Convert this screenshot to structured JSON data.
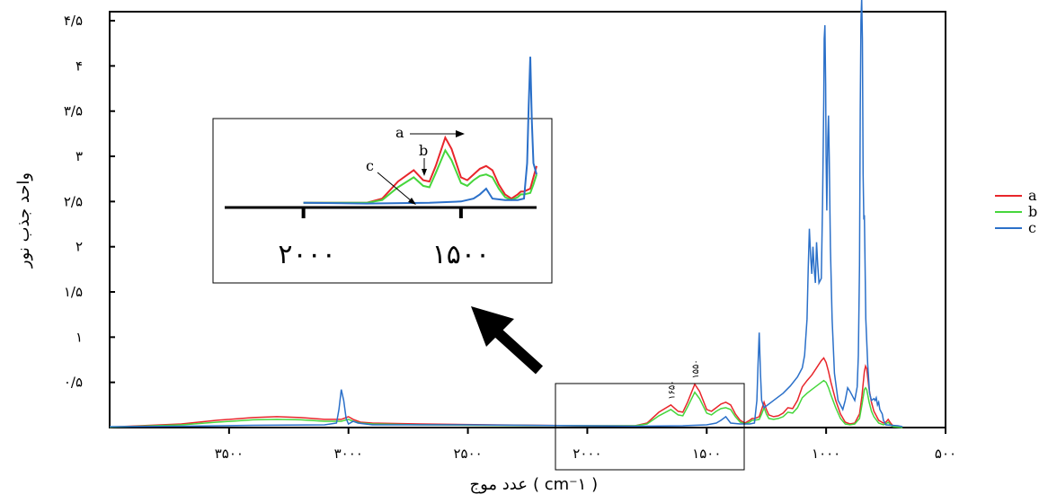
{
  "chart_data": {
    "type": "line",
    "xlabel": "عدد موج",
    "xunit": "( cm⁻۱ )",
    "ylabel": "واحد جذب نور",
    "xlim": [
      4000,
      500
    ],
    "ylim": [
      0,
      4.6
    ],
    "x_ticks": [
      {
        "value": 3500,
        "label": "۳۵۰۰"
      },
      {
        "value": 3000,
        "label": "۳۰۰۰"
      },
      {
        "value": 2500,
        "label": "۲۵۰۰"
      },
      {
        "value": 2000,
        "label": "۲۰۰۰"
      },
      {
        "value": 1500,
        "label": "۱۵۰۰"
      },
      {
        "value": 1000,
        "label": "۱۰۰۰"
      },
      {
        "value": 500,
        "label": "۵۰۰"
      }
    ],
    "y_ticks": [
      {
        "value": 0.5,
        "label": "۰/۵"
      },
      {
        "value": 1,
        "label": "۱"
      },
      {
        "value": 1.5,
        "label": "۱/۵"
      },
      {
        "value": 2,
        "label": "۲"
      },
      {
        "value": 2.5,
        "label": "۲/۵"
      },
      {
        "value": 3,
        "label": "۳"
      },
      {
        "value": 3.5,
        "label": "۳/۵"
      },
      {
        "value": 4,
        "label": "۴"
      },
      {
        "value": 4.5,
        "label": "۴/۵"
      }
    ],
    "legend_position": "right",
    "series": [
      {
        "name": "a",
        "color": "#e8262b",
        "points": [
          [
            4000,
            0.005
          ],
          [
            3700,
            0.04
          ],
          [
            3550,
            0.08
          ],
          [
            3400,
            0.11
          ],
          [
            3300,
            0.12
          ],
          [
            3200,
            0.11
          ],
          [
            3100,
            0.09
          ],
          [
            3030,
            0.09
          ],
          [
            3000,
            0.12
          ],
          [
            2980,
            0.09
          ],
          [
            2950,
            0.06
          ],
          [
            2900,
            0.05
          ],
          [
            2700,
            0.04
          ],
          [
            2400,
            0.03
          ],
          [
            2000,
            0.02
          ],
          [
            1800,
            0.02
          ],
          [
            1750,
            0.05
          ],
          [
            1700,
            0.17
          ],
          [
            1650,
            0.25
          ],
          [
            1620,
            0.18
          ],
          [
            1600,
            0.17
          ],
          [
            1580,
            0.28
          ],
          [
            1550,
            0.48
          ],
          [
            1530,
            0.4
          ],
          [
            1500,
            0.2
          ],
          [
            1480,
            0.18
          ],
          [
            1460,
            0.22
          ],
          [
            1440,
            0.26
          ],
          [
            1420,
            0.28
          ],
          [
            1400,
            0.25
          ],
          [
            1380,
            0.15
          ],
          [
            1360,
            0.08
          ],
          [
            1340,
            0.05
          ],
          [
            1320,
            0.08
          ],
          [
            1310,
            0.1
          ],
          [
            1300,
            0.1
          ],
          [
            1280,
            0.12
          ],
          [
            1270,
            0.2
          ],
          [
            1260,
            0.28
          ],
          [
            1250,
            0.2
          ],
          [
            1240,
            0.14
          ],
          [
            1220,
            0.12
          ],
          [
            1200,
            0.13
          ],
          [
            1180,
            0.16
          ],
          [
            1160,
            0.22
          ],
          [
            1140,
            0.21
          ],
          [
            1120,
            0.3
          ],
          [
            1100,
            0.45
          ],
          [
            1080,
            0.52
          ],
          [
            1060,
            0.58
          ],
          [
            1040,
            0.66
          ],
          [
            1020,
            0.74
          ],
          [
            1010,
            0.77
          ],
          [
            1000,
            0.72
          ],
          [
            990,
            0.62
          ],
          [
            980,
            0.5
          ],
          [
            960,
            0.3
          ],
          [
            940,
            0.15
          ],
          [
            920,
            0.06
          ],
          [
            900,
            0.04
          ],
          [
            880,
            0.05
          ],
          [
            860,
            0.15
          ],
          [
            850,
            0.35
          ],
          [
            840,
            0.62
          ],
          [
            835,
            0.68
          ],
          [
            830,
            0.65
          ],
          [
            820,
            0.42
          ],
          [
            810,
            0.28
          ],
          [
            800,
            0.18
          ],
          [
            780,
            0.08
          ],
          [
            760,
            0.05
          ],
          [
            750,
            0.06
          ],
          [
            740,
            0.09
          ],
          [
            730,
            0.05
          ],
          [
            720,
            0.02
          ],
          [
            680,
            0.0
          ]
        ]
      },
      {
        "name": "b",
        "color": "#46d63c",
        "points": [
          [
            4000,
            0.005
          ],
          [
            3700,
            0.03
          ],
          [
            3550,
            0.06
          ],
          [
            3400,
            0.085
          ],
          [
            3300,
            0.09
          ],
          [
            3200,
            0.085
          ],
          [
            3100,
            0.07
          ],
          [
            3030,
            0.07
          ],
          [
            3000,
            0.09
          ],
          [
            2980,
            0.07
          ],
          [
            2950,
            0.05
          ],
          [
            2900,
            0.04
          ],
          [
            2700,
            0.03
          ],
          [
            2400,
            0.025
          ],
          [
            2000,
            0.02
          ],
          [
            1800,
            0.02
          ],
          [
            1750,
            0.04
          ],
          [
            1700,
            0.13
          ],
          [
            1650,
            0.2
          ],
          [
            1620,
            0.14
          ],
          [
            1600,
            0.13
          ],
          [
            1580,
            0.23
          ],
          [
            1550,
            0.39
          ],
          [
            1530,
            0.32
          ],
          [
            1500,
            0.16
          ],
          [
            1480,
            0.14
          ],
          [
            1460,
            0.18
          ],
          [
            1440,
            0.21
          ],
          [
            1420,
            0.22
          ],
          [
            1400,
            0.2
          ],
          [
            1380,
            0.12
          ],
          [
            1360,
            0.06
          ],
          [
            1340,
            0.04
          ],
          [
            1320,
            0.06
          ],
          [
            1310,
            0.08
          ],
          [
            1300,
            0.08
          ],
          [
            1280,
            0.09
          ],
          [
            1270,
            0.15
          ],
          [
            1260,
            0.22
          ],
          [
            1250,
            0.15
          ],
          [
            1240,
            0.1
          ],
          [
            1220,
            0.09
          ],
          [
            1200,
            0.1
          ],
          [
            1180,
            0.12
          ],
          [
            1160,
            0.17
          ],
          [
            1140,
            0.16
          ],
          [
            1120,
            0.22
          ],
          [
            1100,
            0.33
          ],
          [
            1080,
            0.38
          ],
          [
            1060,
            0.42
          ],
          [
            1040,
            0.46
          ],
          [
            1020,
            0.5
          ],
          [
            1010,
            0.52
          ],
          [
            1000,
            0.5
          ],
          [
            990,
            0.44
          ],
          [
            980,
            0.36
          ],
          [
            960,
            0.22
          ],
          [
            940,
            0.1
          ],
          [
            920,
            0.04
          ],
          [
            900,
            0.03
          ],
          [
            880,
            0.04
          ],
          [
            860,
            0.1
          ],
          [
            850,
            0.25
          ],
          [
            840,
            0.42
          ],
          [
            835,
            0.44
          ],
          [
            830,
            0.42
          ],
          [
            820,
            0.28
          ],
          [
            810,
            0.18
          ],
          [
            800,
            0.12
          ],
          [
            780,
            0.05
          ],
          [
            760,
            0.03
          ],
          [
            750,
            0.04
          ],
          [
            740,
            0.06
          ],
          [
            730,
            0.03
          ],
          [
            720,
            0.01
          ],
          [
            680,
            0.0
          ]
        ]
      },
      {
        "name": "c",
        "color": "#2b70c9",
        "points": [
          [
            4000,
            0.01
          ],
          [
            3700,
            0.015
          ],
          [
            3400,
            0.025
          ],
          [
            3100,
            0.03
          ],
          [
            3050,
            0.05
          ],
          [
            3040,
            0.2
          ],
          [
            3030,
            0.42
          ],
          [
            3020,
            0.3
          ],
          [
            3010,
            0.1
          ],
          [
            3000,
            0.04
          ],
          [
            2980,
            0.07
          ],
          [
            2960,
            0.05
          ],
          [
            2900,
            0.03
          ],
          [
            2500,
            0.03
          ],
          [
            2000,
            0.02
          ],
          [
            1800,
            0.015
          ],
          [
            1600,
            0.02
          ],
          [
            1500,
            0.03
          ],
          [
            1460,
            0.05
          ],
          [
            1440,
            0.08
          ],
          [
            1420,
            0.12
          ],
          [
            1400,
            0.05
          ],
          [
            1360,
            0.04
          ],
          [
            1320,
            0.04
          ],
          [
            1300,
            0.05
          ],
          [
            1290,
            0.3
          ],
          [
            1285,
            0.7
          ],
          [
            1280,
            1.05
          ],
          [
            1275,
            0.6
          ],
          [
            1270,
            0.3
          ],
          [
            1260,
            0.22
          ],
          [
            1220,
            0.3
          ],
          [
            1180,
            0.38
          ],
          [
            1150,
            0.46
          ],
          [
            1120,
            0.56
          ],
          [
            1100,
            0.66
          ],
          [
            1090,
            0.8
          ],
          [
            1080,
            1.2
          ],
          [
            1075,
            1.75
          ],
          [
            1070,
            2.2
          ],
          [
            1065,
            1.9
          ],
          [
            1060,
            1.7
          ],
          [
            1055,
            2.0
          ],
          [
            1050,
            1.75
          ],
          [
            1045,
            1.6
          ],
          [
            1040,
            2.05
          ],
          [
            1035,
            1.8
          ],
          [
            1030,
            1.6
          ],
          [
            1020,
            1.65
          ],
          [
            1015,
            2.5
          ],
          [
            1010,
            3.6
          ],
          [
            1008,
            4.3
          ],
          [
            1005,
            4.45
          ],
          [
            1002,
            3.8
          ],
          [
            1000,
            3.0
          ],
          [
            997,
            2.4
          ],
          [
            993,
            3.2
          ],
          [
            990,
            3.45
          ],
          [
            987,
            3.0
          ],
          [
            982,
            2.0
          ],
          [
            975,
            1.2
          ],
          [
            965,
            0.6
          ],
          [
            950,
            0.3
          ],
          [
            930,
            0.2
          ],
          [
            920,
            0.3
          ],
          [
            910,
            0.44
          ],
          [
            900,
            0.4
          ],
          [
            890,
            0.35
          ],
          [
            880,
            0.3
          ],
          [
            870,
            0.45
          ],
          [
            865,
            0.8
          ],
          [
            860,
            1.8
          ],
          [
            857,
            3.5
          ],
          [
            854,
            4.5
          ],
          [
            851,
            4.75
          ],
          [
            848,
            4.3
          ],
          [
            845,
            2.8
          ],
          [
            842,
            2.3
          ],
          [
            840,
            2.35
          ],
          [
            838,
            2.0
          ],
          [
            834,
            1.2
          ],
          [
            826,
            0.7
          ],
          [
            818,
            0.38
          ],
          [
            810,
            0.3
          ],
          [
            800,
            0.32
          ],
          [
            795,
            0.3
          ],
          [
            790,
            0.33
          ],
          [
            785,
            0.25
          ],
          [
            780,
            0.28
          ],
          [
            775,
            0.2
          ],
          [
            765,
            0.15
          ],
          [
            760,
            0.08
          ],
          [
            750,
            0.03
          ],
          [
            700,
            0.02
          ],
          [
            680,
            0.01
          ]
        ]
      }
    ],
    "inset": {
      "tick_labels": [
        {
          "value": 2000,
          "label": "۲۰۰۰"
        },
        {
          "value": 1500,
          "label": "۱۵۰۰"
        }
      ],
      "annotations": [
        {
          "label": "a"
        },
        {
          "label": "b"
        },
        {
          "label": "c"
        }
      ]
    },
    "peak_labels": [
      {
        "value": 1650,
        "label": "۱۶۵۰"
      },
      {
        "value": 1550,
        "label": "۱۵۵۰"
      }
    ]
  }
}
